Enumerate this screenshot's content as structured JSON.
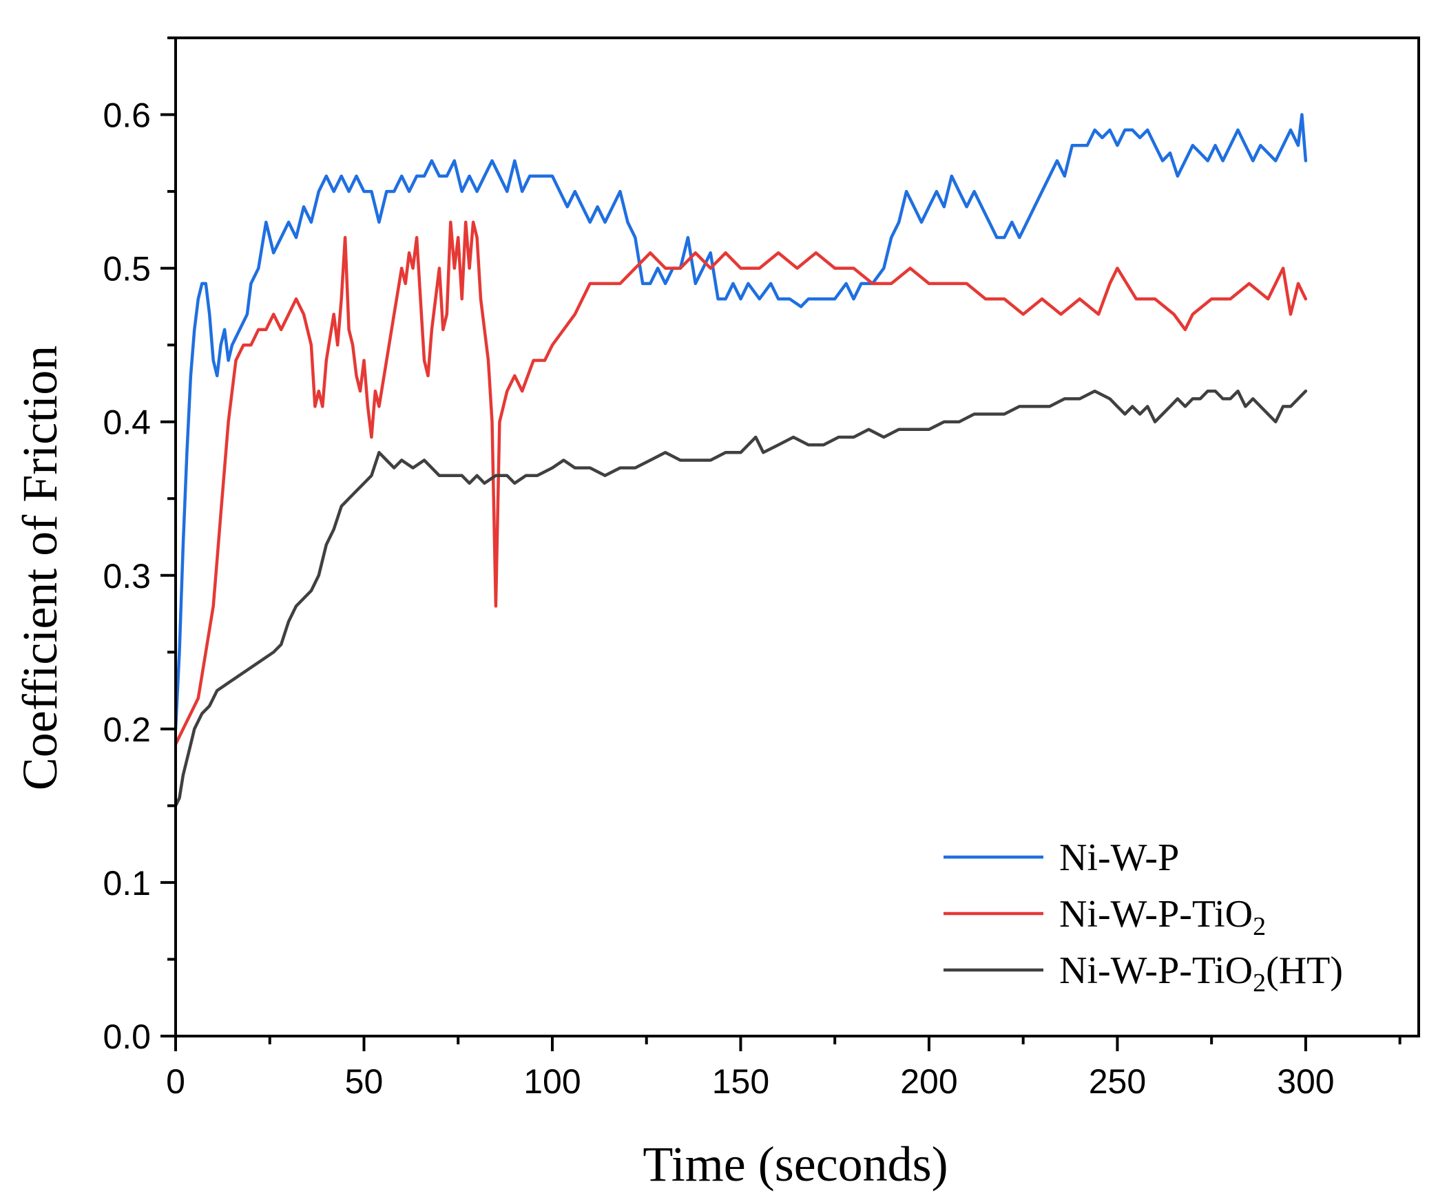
{
  "chart_data": {
    "type": "line",
    "title": "",
    "xlabel": "Time (seconds)",
    "ylabel": "Coefficient of Friction",
    "xlim": [
      0,
      330
    ],
    "ylim": [
      0,
      0.65
    ],
    "xticks": [
      0,
      50,
      100,
      150,
      200,
      250,
      300
    ],
    "xtick_labels": [
      "0",
      "50",
      "100",
      "150",
      "200",
      "250",
      "300"
    ],
    "yticks": [
      0.0,
      0.1,
      0.2,
      0.3,
      0.4,
      0.5,
      0.6
    ],
    "ytick_labels": [
      "0.0",
      "0.1",
      "0.2",
      "0.3",
      "0.4",
      "0.5",
      "0.6"
    ],
    "grid": false,
    "legend_position": "bottom-right",
    "series": [
      {
        "name": "Ni-W-P",
        "legend_parts": [
          "Ni-W-P",
          "",
          ""
        ],
        "color": "#1f6fe0",
        "x": [
          0,
          1,
          2,
          3,
          4,
          5,
          6,
          7,
          8,
          9,
          10,
          11,
          12,
          13,
          14,
          15,
          17,
          19,
          20,
          22,
          24,
          26,
          28,
          30,
          32,
          34,
          36,
          38,
          40,
          42,
          44,
          46,
          48,
          50,
          52,
          54,
          56,
          58,
          60,
          62,
          64,
          66,
          68,
          70,
          72,
          74,
          76,
          78,
          80,
          82,
          84,
          86,
          88,
          90,
          92,
          94,
          96,
          98,
          100,
          102,
          104,
          106,
          108,
          110,
          112,
          114,
          116,
          118,
          120,
          122,
          124,
          126,
          128,
          130,
          132,
          134,
          136,
          138,
          140,
          142,
          144,
          146,
          148,
          150,
          152,
          155,
          158,
          160,
          163,
          166,
          168,
          170,
          172,
          175,
          178,
          180,
          182,
          185,
          188,
          190,
          192,
          194,
          196,
          198,
          200,
          202,
          204,
          206,
          208,
          210,
          212,
          214,
          216,
          218,
          220,
          222,
          224,
          226,
          228,
          230,
          232,
          234,
          236,
          238,
          240,
          242,
          244,
          246,
          248,
          250,
          252,
          254,
          256,
          258,
          260,
          262,
          264,
          266,
          268,
          270,
          272,
          274,
          276,
          278,
          280,
          282,
          284,
          286,
          288,
          290,
          292,
          294,
          296,
          298,
          299,
          300
        ],
        "y": [
          0.2,
          0.25,
          0.32,
          0.38,
          0.43,
          0.46,
          0.48,
          0.49,
          0.49,
          0.47,
          0.44,
          0.43,
          0.45,
          0.46,
          0.44,
          0.45,
          0.46,
          0.47,
          0.49,
          0.5,
          0.53,
          0.51,
          0.52,
          0.53,
          0.52,
          0.54,
          0.53,
          0.55,
          0.56,
          0.55,
          0.56,
          0.55,
          0.56,
          0.55,
          0.55,
          0.53,
          0.55,
          0.55,
          0.56,
          0.55,
          0.56,
          0.56,
          0.57,
          0.56,
          0.56,
          0.57,
          0.55,
          0.56,
          0.55,
          0.56,
          0.57,
          0.56,
          0.55,
          0.57,
          0.55,
          0.56,
          0.56,
          0.56,
          0.56,
          0.55,
          0.54,
          0.55,
          0.54,
          0.53,
          0.54,
          0.53,
          0.54,
          0.55,
          0.53,
          0.52,
          0.49,
          0.49,
          0.5,
          0.49,
          0.5,
          0.5,
          0.52,
          0.49,
          0.5,
          0.51,
          0.48,
          0.48,
          0.49,
          0.48,
          0.49,
          0.48,
          0.49,
          0.48,
          0.48,
          0.475,
          0.48,
          0.48,
          0.48,
          0.48,
          0.49,
          0.48,
          0.49,
          0.49,
          0.5,
          0.52,
          0.53,
          0.55,
          0.54,
          0.53,
          0.54,
          0.55,
          0.54,
          0.56,
          0.55,
          0.54,
          0.55,
          0.54,
          0.53,
          0.52,
          0.52,
          0.53,
          0.52,
          0.53,
          0.54,
          0.55,
          0.56,
          0.57,
          0.56,
          0.58,
          0.58,
          0.58,
          0.59,
          0.585,
          0.59,
          0.58,
          0.59,
          0.59,
          0.585,
          0.59,
          0.58,
          0.57,
          0.575,
          0.56,
          0.57,
          0.58,
          0.575,
          0.57,
          0.58,
          0.57,
          0.58,
          0.59,
          0.58,
          0.57,
          0.58,
          0.575,
          0.57,
          0.58,
          0.59,
          0.58,
          0.6,
          0.57
        ]
      },
      {
        "name": "Ni-W-P-TiO2",
        "legend_parts": [
          "Ni-W-P-TiO",
          "2",
          ""
        ],
        "color": "#e53935",
        "x": [
          0,
          2,
          4,
          6,
          8,
          10,
          11,
          12,
          14,
          16,
          18,
          20,
          22,
          24,
          26,
          28,
          30,
          32,
          34,
          36,
          37,
          38,
          39,
          40,
          42,
          43,
          44,
          45,
          46,
          47,
          48,
          49,
          50,
          51,
          52,
          53,
          54,
          56,
          58,
          60,
          61,
          62,
          63,
          64,
          66,
          67,
          68,
          70,
          71,
          72,
          73,
          74,
          75,
          76,
          77,
          78,
          79,
          80,
          81,
          82,
          83,
          84,
          85,
          86,
          88,
          90,
          92,
          95,
          98,
          100,
          103,
          106,
          110,
          114,
          118,
          122,
          126,
          130,
          134,
          138,
          142,
          146,
          150,
          155,
          160,
          165,
          170,
          175,
          180,
          185,
          190,
          195,
          200,
          205,
          210,
          215,
          220,
          225,
          230,
          235,
          240,
          245,
          248,
          250,
          255,
          260,
          265,
          268,
          270,
          275,
          280,
          285,
          290,
          292,
          294,
          296,
          298,
          300
        ],
        "y": [
          0.19,
          0.2,
          0.21,
          0.22,
          0.25,
          0.28,
          0.31,
          0.34,
          0.4,
          0.44,
          0.45,
          0.45,
          0.46,
          0.46,
          0.47,
          0.46,
          0.47,
          0.48,
          0.47,
          0.45,
          0.41,
          0.42,
          0.41,
          0.44,
          0.47,
          0.45,
          0.48,
          0.52,
          0.46,
          0.45,
          0.43,
          0.42,
          0.44,
          0.41,
          0.39,
          0.42,
          0.41,
          0.44,
          0.47,
          0.5,
          0.49,
          0.51,
          0.5,
          0.52,
          0.44,
          0.43,
          0.46,
          0.5,
          0.46,
          0.47,
          0.53,
          0.5,
          0.52,
          0.48,
          0.53,
          0.5,
          0.53,
          0.52,
          0.48,
          0.46,
          0.44,
          0.4,
          0.28,
          0.4,
          0.42,
          0.43,
          0.42,
          0.44,
          0.44,
          0.45,
          0.46,
          0.47,
          0.49,
          0.49,
          0.49,
          0.5,
          0.51,
          0.5,
          0.5,
          0.51,
          0.5,
          0.51,
          0.5,
          0.5,
          0.51,
          0.5,
          0.51,
          0.5,
          0.5,
          0.49,
          0.49,
          0.5,
          0.49,
          0.49,
          0.49,
          0.48,
          0.48,
          0.47,
          0.48,
          0.47,
          0.48,
          0.47,
          0.49,
          0.5,
          0.48,
          0.48,
          0.47,
          0.46,
          0.47,
          0.48,
          0.48,
          0.49,
          0.48,
          0.49,
          0.5,
          0.47,
          0.49,
          0.48
        ]
      },
      {
        "name": "Ni-W-P-TiO2(HT)",
        "legend_parts": [
          "Ni-W-P-TiO",
          "2",
          "(HT)"
        ],
        "color": "#404040",
        "x": [
          0,
          1,
          2,
          3,
          4,
          5,
          7,
          9,
          11,
          14,
          17,
          20,
          23,
          26,
          28,
          30,
          32,
          34,
          36,
          38,
          40,
          42,
          44,
          46,
          48,
          50,
          52,
          54,
          56,
          58,
          60,
          63,
          66,
          70,
          73,
          76,
          78,
          80,
          82,
          85,
          88,
          90,
          93,
          96,
          100,
          103,
          106,
          110,
          114,
          118,
          122,
          126,
          130,
          134,
          138,
          142,
          146,
          150,
          152,
          154,
          156,
          160,
          164,
          168,
          172,
          176,
          180,
          184,
          188,
          192,
          196,
          200,
          204,
          208,
          212,
          216,
          220,
          224,
          228,
          232,
          236,
          240,
          244,
          248,
          250,
          252,
          254,
          256,
          258,
          260,
          262,
          264,
          266,
          268,
          270,
          272,
          274,
          276,
          278,
          280,
          282,
          284,
          286,
          288,
          290,
          292,
          294,
          296,
          298,
          300
        ],
        "y": [
          0.15,
          0.155,
          0.17,
          0.18,
          0.19,
          0.2,
          0.21,
          0.215,
          0.225,
          0.23,
          0.235,
          0.24,
          0.245,
          0.25,
          0.255,
          0.27,
          0.28,
          0.285,
          0.29,
          0.3,
          0.32,
          0.33,
          0.345,
          0.35,
          0.355,
          0.36,
          0.365,
          0.38,
          0.375,
          0.37,
          0.375,
          0.37,
          0.375,
          0.365,
          0.365,
          0.365,
          0.36,
          0.365,
          0.36,
          0.365,
          0.365,
          0.36,
          0.365,
          0.365,
          0.37,
          0.375,
          0.37,
          0.37,
          0.365,
          0.37,
          0.37,
          0.375,
          0.38,
          0.375,
          0.375,
          0.375,
          0.38,
          0.38,
          0.385,
          0.39,
          0.38,
          0.385,
          0.39,
          0.385,
          0.385,
          0.39,
          0.39,
          0.395,
          0.39,
          0.395,
          0.395,
          0.395,
          0.4,
          0.4,
          0.405,
          0.405,
          0.405,
          0.41,
          0.41,
          0.41,
          0.415,
          0.415,
          0.42,
          0.415,
          0.41,
          0.405,
          0.41,
          0.405,
          0.41,
          0.4,
          0.405,
          0.41,
          0.415,
          0.41,
          0.415,
          0.415,
          0.42,
          0.42,
          0.415,
          0.415,
          0.42,
          0.41,
          0.415,
          0.41,
          0.405,
          0.4,
          0.41,
          0.41,
          0.415,
          0.42
        ]
      }
    ]
  }
}
